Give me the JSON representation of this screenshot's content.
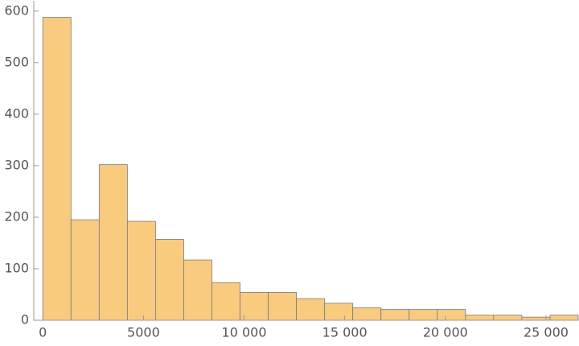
{
  "chart_data": {
    "type": "histogram",
    "bins": [
      0,
      1400,
      2800,
      4200,
      5600,
      7000,
      8400,
      9800,
      11200,
      12600,
      14000,
      15400,
      16800,
      18200,
      19600,
      21000,
      22400,
      23800,
      25200,
      26600
    ],
    "values": [
      588,
      195,
      302,
      192,
      157,
      117,
      73,
      54,
      54,
      42,
      33,
      24,
      21,
      21,
      21,
      10,
      10,
      6,
      10
    ],
    "color": "#f9cb7f",
    "xlim": [
      -450,
      26600
    ],
    "ylim": [
      0,
      620
    ],
    "xticks": [
      0,
      5000,
      {
        "value": 10000,
        "label": "10 000"
      },
      {
        "value": 15000,
        "label": "15 000"
      },
      {
        "value": 20000,
        "label": "20 000"
      },
      {
        "value": 25000,
        "label": "25 000"
      }
    ],
    "yticks": [
      0,
      100,
      200,
      300,
      400,
      500,
      600
    ]
  }
}
